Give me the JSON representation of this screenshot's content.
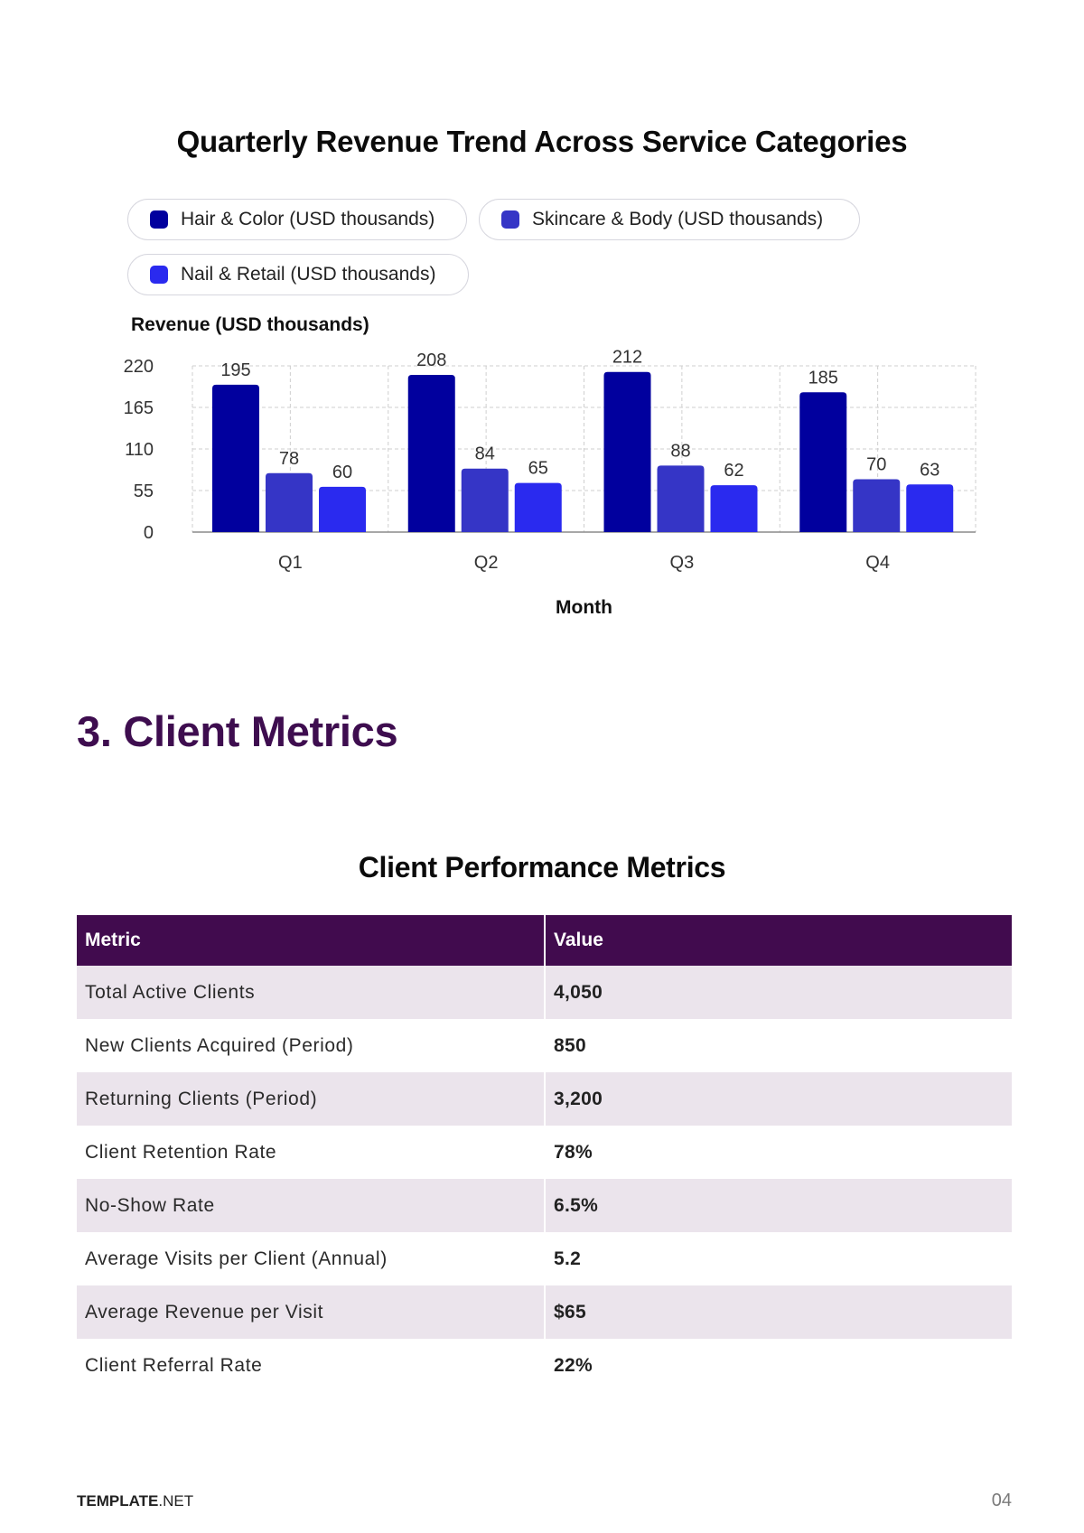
{
  "chart_data": {
    "type": "bar",
    "title": "Quarterly Revenue Trend Across Service Categories",
    "xlabel": "Month",
    "ylabel": "Revenue (USD thousands)",
    "categories": [
      "Q1",
      "Q2",
      "Q3",
      "Q4"
    ],
    "ylim": [
      0,
      220
    ],
    "yticks": [
      0,
      55,
      110,
      165,
      220
    ],
    "grid": true,
    "legend_position": "top",
    "series": [
      {
        "name": "Hair & Color (USD thousands)",
        "values": [
          195,
          208,
          212,
          185
        ],
        "color": "#01009e"
      },
      {
        "name": "Skincare & Body (USD thousands)",
        "values": [
          78,
          84,
          88,
          70
        ],
        "color": "#3535c6"
      },
      {
        "name": "Nail & Retail (USD thousands)",
        "values": [
          60,
          65,
          62,
          63
        ],
        "color": "#2a2aef"
      }
    ]
  },
  "section": {
    "heading": "3. Client Metrics"
  },
  "table": {
    "title": "Client Performance Metrics",
    "headers": [
      "Metric",
      "Value"
    ],
    "rows": [
      [
        "Total Active Clients",
        "4,050"
      ],
      [
        "New Clients Acquired (Period)",
        "850"
      ],
      [
        "Returning Clients (Period)",
        "3,200"
      ],
      [
        "Client Retention Rate",
        "78%"
      ],
      [
        "No-Show Rate",
        "6.5%"
      ],
      [
        "Average Visits per Client (Annual)",
        "5.2"
      ],
      [
        "Average Revenue per Visit",
        "$65"
      ],
      [
        "Client Referral Rate",
        "22%"
      ]
    ],
    "header_color": "#410b4e",
    "stripe_color": "#ebe4ec"
  },
  "footer": {
    "brand_bold": "TEMPLATE",
    "brand_rest": ".NET",
    "page_number": "04"
  }
}
